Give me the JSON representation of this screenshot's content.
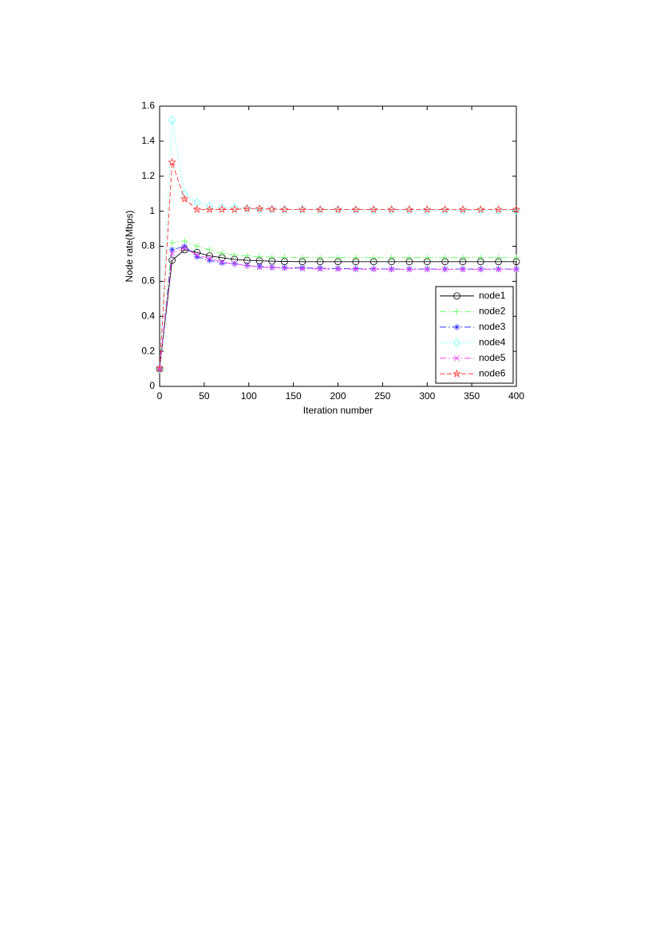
{
  "chart_data": {
    "type": "line",
    "x_label": "Iteration number",
    "y_label": "Node rate(Mbps)",
    "x": [
      0,
      14,
      28,
      42,
      56,
      70,
      84,
      98,
      112,
      126,
      140,
      160,
      180,
      200,
      220,
      240,
      260,
      280,
      300,
      320,
      340,
      360,
      380,
      400
    ],
    "series": [
      {
        "name": "node1",
        "color": "#000000",
        "dash": "solid",
        "marker": "circle",
        "values": [
          0.1,
          0.72,
          0.78,
          0.765,
          0.745,
          0.735,
          0.725,
          0.72,
          0.717,
          0.715,
          0.713,
          0.712,
          0.712,
          0.712,
          0.712,
          0.712,
          0.712,
          0.712,
          0.712,
          0.712,
          0.712,
          0.712,
          0.712,
          0.712
        ]
      },
      {
        "name": "node2",
        "color": "#66ff66",
        "dash": "dashdot",
        "marker": "plus",
        "values": [
          0.1,
          0.82,
          0.83,
          0.8,
          0.78,
          0.76,
          0.75,
          0.745,
          0.74,
          0.738,
          0.736,
          0.735,
          0.735,
          0.735,
          0.735,
          0.735,
          0.735,
          0.735,
          0.735,
          0.735,
          0.735,
          0.735,
          0.735,
          0.735
        ]
      },
      {
        "name": "node3",
        "color": "#3333ff",
        "dash": "dashdot",
        "marker": "asterisk",
        "values": [
          0.1,
          0.78,
          0.8,
          0.74,
          0.72,
          0.705,
          0.7,
          0.69,
          0.685,
          0.68,
          0.678,
          0.676,
          0.675,
          0.673,
          0.672,
          0.671,
          0.67,
          0.67,
          0.67,
          0.67,
          0.67,
          0.67,
          0.67,
          0.67
        ]
      },
      {
        "name": "node4",
        "color": "#66ffff",
        "dash": "dotted",
        "marker": "diamond",
        "values": [
          0.1,
          1.52,
          1.1,
          1.05,
          1.03,
          1.02,
          1.02,
          1.015,
          1.01,
          1.01,
          1.01,
          1.01,
          1.008,
          1.008,
          1.007,
          1.007,
          1.006,
          1.006,
          1.005,
          1.005,
          1.005,
          1.005,
          1.005,
          1.005
        ]
      },
      {
        "name": "node5",
        "color": "#ff44ff",
        "dash": "dashdot",
        "marker": "cross",
        "values": [
          0.1,
          0.76,
          0.79,
          0.75,
          0.73,
          0.71,
          0.7,
          0.69,
          0.68,
          0.678,
          0.675,
          0.672,
          0.67,
          0.67,
          0.669,
          0.669,
          0.668,
          0.668,
          0.668,
          0.668,
          0.668,
          0.668,
          0.668,
          0.668
        ]
      },
      {
        "name": "node6",
        "color": "#ff3333",
        "dash": "dashed",
        "marker": "pentagram",
        "values": [
          0.1,
          1.28,
          1.07,
          1.01,
          1.01,
          1.01,
          1.01,
          1.015,
          1.015,
          1.012,
          1.01,
          1.01,
          1.01,
          1.01,
          1.01,
          1.01,
          1.01,
          1.01,
          1.01,
          1.01,
          1.01,
          1.01,
          1.01,
          1.01
        ]
      }
    ],
    "xlim": [
      0,
      400
    ],
    "xticks": [
      0,
      50,
      100,
      150,
      200,
      250,
      300,
      350,
      400
    ],
    "ylim": [
      0,
      1.6
    ],
    "yticks": [
      0,
      0.2,
      0.4,
      0.6,
      0.8,
      1,
      1.2,
      1.4,
      1.6
    ],
    "grid": false,
    "legend": "lower right"
  }
}
